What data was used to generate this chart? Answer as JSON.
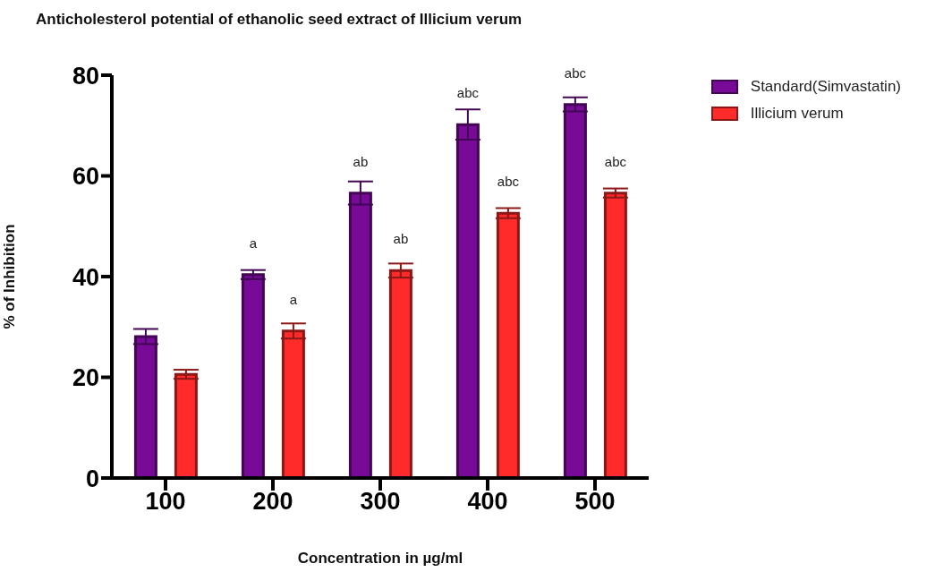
{
  "chart_data": {
    "type": "bar",
    "title": "Anticholesterol potential of ethanolic seed extract of Illicium verum",
    "xlabel": "Concentration in µg/ml",
    "ylabel": "% of Inhibition",
    "categories": [
      "100",
      "200",
      "300",
      "400",
      "500"
    ],
    "series": [
      {
        "name": "Standard(Simvastatin)",
        "color": "#780a98",
        "values": [
          28.1,
          40.4,
          56.6,
          70.2,
          74.2
        ],
        "errors": [
          1.5,
          0.9,
          2.3,
          3.0,
          1.4
        ],
        "value_labels": [
          null,
          "a",
          "ab",
          "abc",
          "abc"
        ]
      },
      {
        "name": "Illicium verum",
        "color": "#ff2a2a",
        "values": [
          20.6,
          29.2,
          41.2,
          52.6,
          56.6
        ],
        "errors": [
          0.9,
          1.5,
          1.4,
          1.0,
          0.9
        ],
        "value_labels": [
          null,
          "a",
          "ab",
          "abc",
          "abc"
        ]
      }
    ],
    "ylim": [
      0,
      80
    ],
    "yticks": [
      0,
      20,
      40,
      60,
      80
    ],
    "grid": false,
    "legend": "top right"
  }
}
